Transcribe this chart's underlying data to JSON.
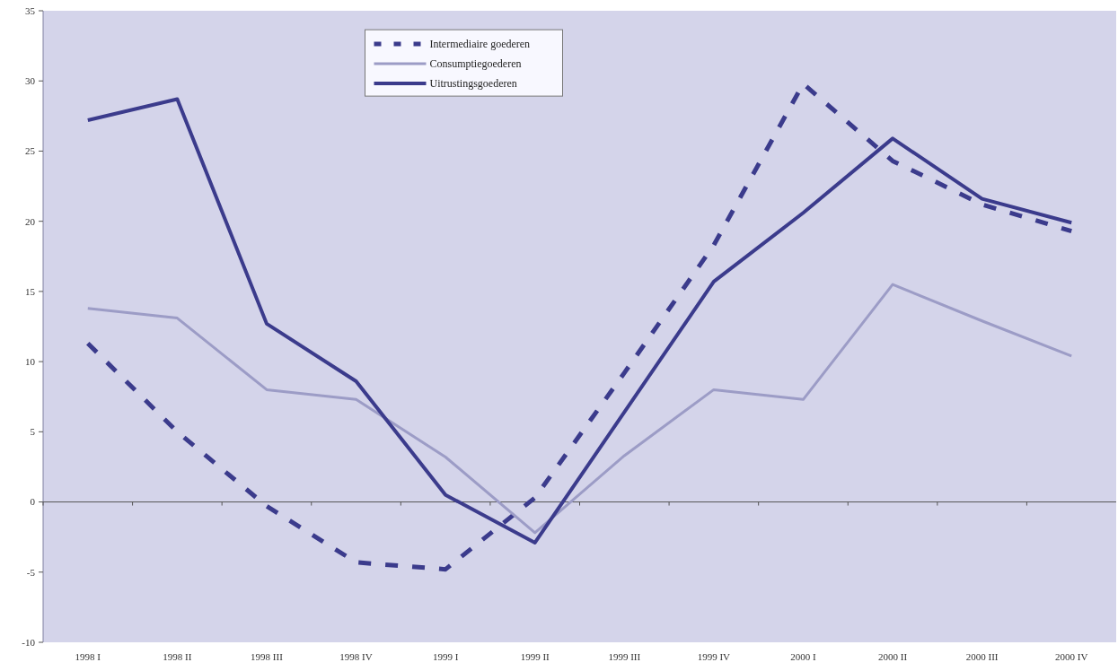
{
  "chart_data": {
    "type": "line",
    "categories": [
      "1998 I",
      "1998 II",
      "1998 III",
      "1998 IV",
      "1999 I",
      "1999 II",
      "1999 III",
      "1999 IV",
      "2000 I",
      "2000 II",
      "2000 III",
      "2000 IV"
    ],
    "series": [
      {
        "name": "Intermediaire goederen",
        "color": "#3b3b8c",
        "line_style": "dashed",
        "values": [
          11.3,
          5,
          -0.3,
          -4.3,
          -4.8,
          0.3,
          9.2,
          18.3,
          29.8,
          24.3,
          21.2,
          19.3
        ]
      },
      {
        "name": "Consumptiegoederen",
        "color": "#9c9cc6",
        "line_style": "solid",
        "values": [
          13.8,
          13.1,
          8.0,
          7.3,
          3.2,
          -2.2,
          3.3,
          8.0,
          7.3,
          15.5,
          12.9,
          10.4
        ]
      },
      {
        "name": "Uitrustingsgoederen",
        "color": "#3b3b8c",
        "line_style": "solid",
        "values": [
          27.2,
          28.7,
          12.7,
          8.6,
          0.5,
          -2.9,
          6.4,
          15.7,
          20.6,
          25.9,
          21.6,
          19.9
        ]
      }
    ],
    "ylim": [
      -10,
      35
    ],
    "yticks": [
      -10,
      -5,
      0,
      5,
      10,
      15,
      20,
      25,
      30,
      35
    ],
    "legend": "top",
    "marker": "none"
  }
}
